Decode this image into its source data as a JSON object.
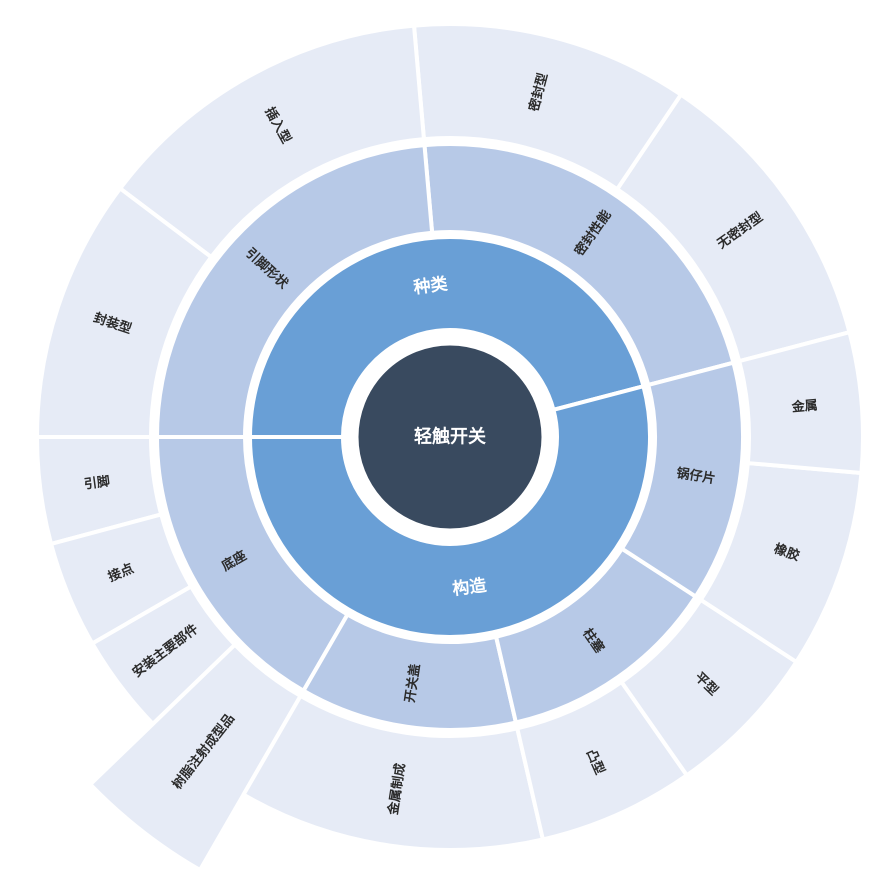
{
  "chart_data": {
    "type": "sunburst",
    "title": "",
    "legend_position": "none",
    "palette": {
      "center": "#394a5f",
      "level1": "#699fd6",
      "level2": "#b7c9e7",
      "level3": "#e6ebf6",
      "gap": "#ffffff",
      "label_dark": "#2b2b2b",
      "label_light": "#ffffff"
    },
    "tree": {
      "label": "轻触开关",
      "children": [
        {
          "label": "种类",
          "angle": [
            14.7,
            180
          ],
          "children": [
            {
              "label": "密封性能",
              "angle": [
                14.7,
                95
              ],
              "children": [
                {
                  "label": "无密封型",
                  "angle": [
                    14.7,
                    56
                  ]
                },
                {
                  "label": "密封型",
                  "angle": [
                    56,
                    95
                  ]
                }
              ]
            },
            {
              "label": "引脚形状",
              "angle": [
                95,
                180
              ],
              "children": [
                {
                  "label": "插入型",
                  "angle": [
                    95,
                    143
                  ]
                },
                {
                  "label": "封装型",
                  "angle": [
                    143,
                    180
                  ]
                }
              ]
            }
          ]
        },
        {
          "label": "构造",
          "angle": [
            180,
            374.7
          ],
          "children": [
            {
              "label": "底座",
              "angle": [
                180,
                240
              ],
              "children": [
                {
                  "label": "引脚",
                  "angle": [
                    180,
                    195
                  ]
                },
                {
                  "label": "接点",
                  "angle": [
                    195,
                    210
                  ]
                },
                {
                  "label": "安装主要部件",
                  "angle": [
                    210,
                    224
                  ]
                },
                {
                  "label": "树脂注射成型品",
                  "angle": [
                    224,
                    240
                  ],
                  "extended": true
                }
              ]
            },
            {
              "label": "开关盖",
              "angle": [
                240,
                283
              ],
              "children": [
                {
                  "label": "金属制成",
                  "angle": [
                    240,
                    283
                  ]
                }
              ]
            },
            {
              "label": "柱塞",
              "angle": [
                283,
                327
              ],
              "children": [
                {
                  "label": "凸型",
                  "angle": [
                    283,
                    305
                  ]
                },
                {
                  "label": "平型",
                  "angle": [
                    305,
                    327
                  ]
                }
              ]
            },
            {
              "label": "锅仔片",
              "angle": [
                327,
                374.7
              ],
              "children": [
                {
                  "label": "橡胶",
                  "angle": [
                    327,
                    355
                  ]
                },
                {
                  "label": "金属",
                  "angle": [
                    355,
                    374.7
                  ]
                }
              ]
            }
          ]
        }
      ]
    }
  }
}
